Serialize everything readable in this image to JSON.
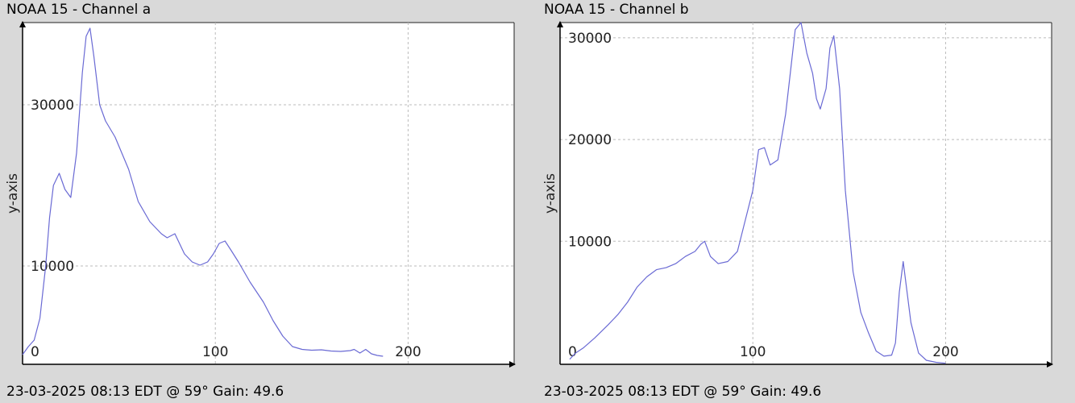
{
  "chart_data": [
    {
      "type": "line",
      "title": "NOAA 15 - Channel a",
      "footer": "23-03-2025 08:13 EDT @ 59° Gain: 49.6",
      "ylabel": "y-axis",
      "xlabel": "",
      "xlim": [
        0,
        255
      ],
      "ylim": [
        -2200,
        40200
      ],
      "grid": true,
      "line_color": "#6a6ad4",
      "x_ticks": [
        0,
        100,
        200
      ],
      "x_tick_labels": [
        "0",
        "100",
        "200"
      ],
      "y_ticks": [
        10000,
        30000
      ],
      "y_tick_labels": [
        "10000",
        "30000"
      ],
      "x": [
        0,
        3,
        6,
        9,
        12,
        14,
        16,
        19,
        22,
        25,
        28,
        31,
        33,
        35,
        37,
        40,
        43,
        48,
        55,
        60,
        66,
        72,
        75,
        79,
        84,
        88,
        92,
        96,
        99,
        102,
        105,
        108,
        112,
        118,
        125,
        130,
        135,
        140,
        145,
        150,
        155,
        160,
        165,
        170,
        172,
        175,
        178,
        181,
        184,
        187
      ],
      "values": [
        -1000,
        0,
        800,
        3500,
        10000,
        16000,
        20000,
        21500,
        19500,
        18500,
        24000,
        34000,
        38500,
        39500,
        36000,
        30000,
        28000,
        26000,
        22000,
        18000,
        15500,
        14000,
        13500,
        14000,
        11500,
        10500,
        10100,
        10500,
        11500,
        12800,
        13100,
        12000,
        10500,
        8000,
        5500,
        3200,
        1300,
        0,
        -350,
        -450,
        -400,
        -550,
        -600,
        -500,
        -350,
        -800,
        -350,
        -900,
        -1100,
        -1200
      ]
    },
    {
      "type": "line",
      "title": "NOAA 15 - Channel b",
      "footer": "23-03-2025 08:13 EDT @ 59° Gain: 49.6",
      "ylabel": "y-axis",
      "xlabel": "",
      "xlim": [
        0,
        255
      ],
      "ylim": [
        -2100,
        31500
      ],
      "grid": true,
      "line_color": "#6a6ad4",
      "x_ticks": [
        0,
        100,
        200
      ],
      "x_tick_labels": [
        "0",
        "100",
        "200"
      ],
      "y_ticks": [
        10000,
        20000,
        30000
      ],
      "y_tick_labels": [
        "10000",
        "20000",
        "30000"
      ],
      "x": [
        5,
        8,
        12,
        18,
        25,
        30,
        35,
        40,
        45,
        50,
        55,
        60,
        65,
        70,
        73,
        75,
        78,
        82,
        87,
        92,
        96,
        100,
        103,
        106,
        109,
        113,
        117,
        120,
        122,
        125,
        128,
        131,
        133,
        135,
        138,
        140,
        142,
        145,
        148,
        152,
        156,
        160,
        164,
        168,
        172,
        174,
        176,
        178,
        182,
        186,
        190,
        195,
        200
      ],
      "values": [
        -1600,
        -1000,
        -500,
        500,
        1800,
        2800,
        4000,
        5500,
        6500,
        7200,
        7400,
        7800,
        8500,
        9000,
        9700,
        10000,
        8500,
        7800,
        8000,
        9000,
        12000,
        15000,
        19000,
        19200,
        17500,
        18000,
        22500,
        27500,
        30800,
        31500,
        28500,
        26500,
        24000,
        23000,
        25000,
        29000,
        30200,
        25000,
        15000,
        7000,
        3000,
        1000,
        -800,
        -1300,
        -1200,
        0,
        5000,
        8000,
        2000,
        -1000,
        -1700,
        -1900,
        -2000
      ]
    }
  ]
}
